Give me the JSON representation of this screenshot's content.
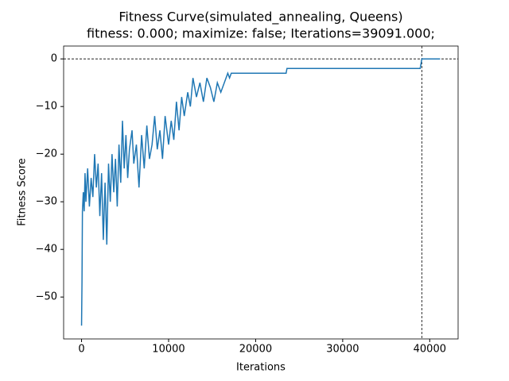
{
  "chart_data": {
    "type": "line",
    "title": "Fitness Curve(simulated_annealing, Queens)",
    "subtitle": "fitness: 0.000; maximize: false; Iterations=39091.000;",
    "xlabel": "Iterations",
    "ylabel": "Fitness Score",
    "x": [
      0,
      50,
      100,
      200,
      300,
      400,
      500,
      700,
      900,
      1100,
      1300,
      1500,
      1700,
      1900,
      2100,
      2300,
      2500,
      2700,
      2900,
      3100,
      3300,
      3500,
      3700,
      3900,
      4100,
      4300,
      4500,
      4700,
      4900,
      5100,
      5300,
      5500,
      5800,
      6000,
      6300,
      6600,
      6900,
      7200,
      7500,
      7800,
      8100,
      8400,
      8700,
      9000,
      9300,
      9600,
      10000,
      10300,
      10600,
      10900,
      11200,
      11500,
      11800,
      12200,
      12500,
      12800,
      13200,
      13600,
      14000,
      14400,
      14800,
      15200,
      15600,
      16000,
      16400,
      16800,
      17000,
      17200,
      23500,
      23600,
      38900,
      39000,
      39091,
      41200
    ],
    "values": [
      -56,
      -47,
      -32,
      -28,
      -32,
      -24,
      -30,
      -23,
      -31,
      -25,
      -29,
      -20,
      -27,
      -22,
      -33,
      -24,
      -38,
      -26,
      -39,
      -22,
      -30,
      -20,
      -28,
      -21,
      -31,
      -18,
      -26,
      -13,
      -23,
      -16,
      -25,
      -19,
      -15,
      -22,
      -18,
      -27,
      -16,
      -23,
      -14,
      -21,
      -18,
      -12,
      -19,
      -15,
      -21,
      -12,
      -18,
      -13,
      -17,
      -9,
      -15,
      -8,
      -12,
      -7,
      -10,
      -4,
      -8,
      -5,
      -9,
      -4,
      -6,
      -9,
      -5,
      -7,
      -5,
      -3,
      -4,
      -3,
      -3,
      -2,
      -2,
      -1,
      0,
      0
    ],
    "color": "#1f77b4",
    "hlines": [
      0
    ],
    "vlines": [
      39091
    ],
    "xlim": [
      -2060,
      43260
    ],
    "ylim": [
      -58.8,
      2.7
    ],
    "xticks": [
      0,
      10000,
      20000,
      30000,
      40000
    ],
    "yticks": [
      {
        "value": -50,
        "label": "−50"
      },
      {
        "value": -40,
        "label": "−40"
      },
      {
        "value": -30,
        "label": "−30"
      },
      {
        "value": -20,
        "label": "−20"
      },
      {
        "value": -10,
        "label": "−10"
      },
      0
    ]
  }
}
